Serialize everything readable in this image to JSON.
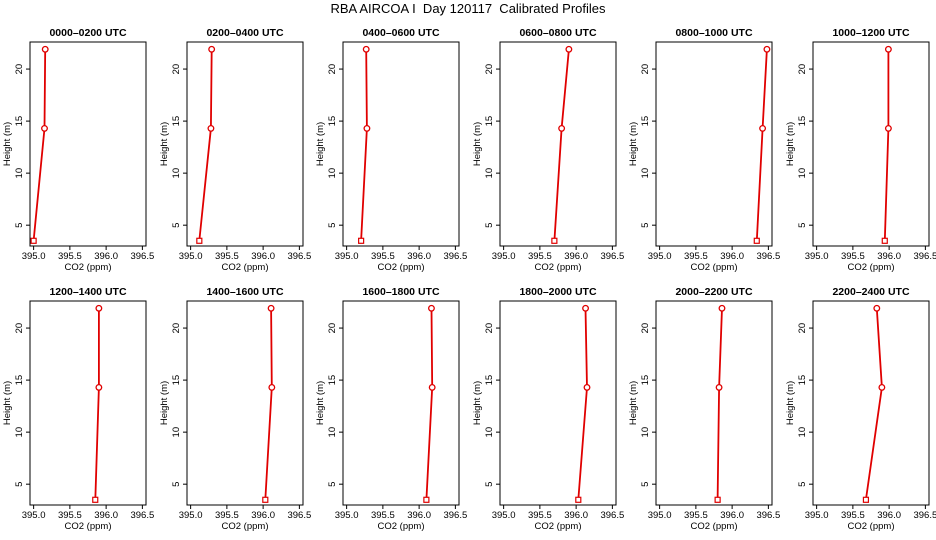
{
  "title": "RBA AIRCOA I  Day 120117  Calibrated Profiles",
  "colors": {
    "series": "#e00000",
    "axis": "#000000",
    "background": "#ffffff"
  },
  "chart_data": [
    {
      "type": "line",
      "title": "0000–0200 UTC",
      "xlabel": "CO2 (ppm)",
      "ylabel": "Height (m)",
      "xlim": [
        394.95,
        396.55
      ],
      "ylim": [
        3.0,
        22.6
      ],
      "xticks": [
        "395.0",
        "395.5",
        "396.0",
        "396.5"
      ],
      "yticks": [
        "5",
        "10",
        "15",
        "20"
      ],
      "grid": false,
      "series": [
        {
          "x": [
            395.0,
            395.15,
            395.16
          ],
          "y": [
            3.5,
            14.3,
            21.9
          ]
        }
      ]
    },
    {
      "type": "line",
      "title": "0200–0400 UTC",
      "xlabel": "CO2 (ppm)",
      "ylabel": "Height (m)",
      "xlim": [
        394.95,
        396.55
      ],
      "ylim": [
        3.0,
        22.6
      ],
      "xticks": [
        "395.0",
        "395.5",
        "396.0",
        "396.5"
      ],
      "yticks": [
        "5",
        "10",
        "15",
        "20"
      ],
      "grid": false,
      "series": [
        {
          "x": [
            395.12,
            395.28,
            395.29
          ],
          "y": [
            3.5,
            14.3,
            21.9
          ]
        }
      ]
    },
    {
      "type": "line",
      "title": "0400–0600 UTC",
      "xlabel": "CO2 (ppm)",
      "ylabel": "Height (m)",
      "xlim": [
        394.95,
        396.55
      ],
      "ylim": [
        3.0,
        22.6
      ],
      "xticks": [
        "395.0",
        "395.5",
        "396.0",
        "396.5"
      ],
      "yticks": [
        "5",
        "10",
        "15",
        "20"
      ],
      "grid": false,
      "series": [
        {
          "x": [
            395.2,
            395.28,
            395.27
          ],
          "y": [
            3.5,
            14.3,
            21.9
          ]
        }
      ]
    },
    {
      "type": "line",
      "title": "0600–0800 UTC",
      "xlabel": "CO2 (ppm)",
      "ylabel": "Height (m)",
      "xlim": [
        394.95,
        396.55
      ],
      "ylim": [
        3.0,
        22.6
      ],
      "xticks": [
        "395.0",
        "395.5",
        "396.0",
        "396.5"
      ],
      "yticks": [
        "5",
        "10",
        "15",
        "20"
      ],
      "grid": false,
      "series": [
        {
          "x": [
            395.7,
            395.8,
            395.9
          ],
          "y": [
            3.5,
            14.3,
            21.9
          ]
        }
      ]
    },
    {
      "type": "line",
      "title": "0800–1000 UTC",
      "xlabel": "CO2 (ppm)",
      "ylabel": "Height (m)",
      "xlim": [
        394.95,
        396.55
      ],
      "ylim": [
        3.0,
        22.6
      ],
      "xticks": [
        "395.0",
        "395.5",
        "396.0",
        "396.5"
      ],
      "yticks": [
        "5",
        "10",
        "15",
        "20"
      ],
      "grid": false,
      "series": [
        {
          "x": [
            396.34,
            396.42,
            396.48
          ],
          "y": [
            3.5,
            14.3,
            21.9
          ]
        }
      ]
    },
    {
      "type": "line",
      "title": "1000–1200 UTC",
      "xlabel": "CO2 (ppm)",
      "ylabel": "Height (m)",
      "xlim": [
        394.95,
        396.55
      ],
      "ylim": [
        3.0,
        22.6
      ],
      "xticks": [
        "395.0",
        "395.5",
        "396.0",
        "396.5"
      ],
      "yticks": [
        "5",
        "10",
        "15",
        "20"
      ],
      "grid": false,
      "series": [
        {
          "x": [
            395.94,
            395.99,
            395.99
          ],
          "y": [
            3.5,
            14.3,
            21.9
          ]
        }
      ]
    },
    {
      "type": "line",
      "title": "1200–1400 UTC",
      "xlabel": "CO2 (ppm)",
      "ylabel": "Height (m)",
      "xlim": [
        394.95,
        396.55
      ],
      "ylim": [
        3.0,
        22.6
      ],
      "xticks": [
        "395.0",
        "395.5",
        "396.0",
        "396.5"
      ],
      "yticks": [
        "5",
        "10",
        "15",
        "20"
      ],
      "grid": false,
      "series": [
        {
          "x": [
            395.85,
            395.9,
            395.9
          ],
          "y": [
            3.5,
            14.3,
            21.9
          ]
        }
      ]
    },
    {
      "type": "line",
      "title": "1400–1600 UTC",
      "xlabel": "CO2 (ppm)",
      "ylabel": "Height (m)",
      "xlim": [
        394.95,
        396.55
      ],
      "ylim": [
        3.0,
        22.6
      ],
      "xticks": [
        "395.0",
        "395.5",
        "396.0",
        "396.5"
      ],
      "yticks": [
        "5",
        "10",
        "15",
        "20"
      ],
      "grid": false,
      "series": [
        {
          "x": [
            396.03,
            396.12,
            396.11
          ],
          "y": [
            3.5,
            14.3,
            21.9
          ]
        }
      ]
    },
    {
      "type": "line",
      "title": "1600–1800 UTC",
      "xlabel": "CO2 (ppm)",
      "ylabel": "Height (m)",
      "xlim": [
        394.95,
        396.55
      ],
      "ylim": [
        3.0,
        22.6
      ],
      "xticks": [
        "395.0",
        "395.5",
        "396.0",
        "396.5"
      ],
      "yticks": [
        "5",
        "10",
        "15",
        "20"
      ],
      "grid": false,
      "series": [
        {
          "x": [
            396.1,
            396.18,
            396.17
          ],
          "y": [
            3.5,
            14.3,
            21.9
          ]
        }
      ]
    },
    {
      "type": "line",
      "title": "1800–2000 UTC",
      "xlabel": "CO2 (ppm)",
      "ylabel": "Height (m)",
      "xlim": [
        394.95,
        396.55
      ],
      "ylim": [
        3.0,
        22.6
      ],
      "xticks": [
        "395.0",
        "395.5",
        "396.0",
        "396.5"
      ],
      "yticks": [
        "5",
        "10",
        "15",
        "20"
      ],
      "grid": false,
      "series": [
        {
          "x": [
            396.03,
            396.15,
            396.13
          ],
          "y": [
            3.5,
            14.3,
            21.9
          ]
        }
      ]
    },
    {
      "type": "line",
      "title": "2000–2200 UTC",
      "xlabel": "CO2 (ppm)",
      "ylabel": "Height (m)",
      "xlim": [
        394.95,
        396.55
      ],
      "ylim": [
        3.0,
        22.6
      ],
      "xticks": [
        "395.0",
        "395.5",
        "396.0",
        "396.5"
      ],
      "yticks": [
        "5",
        "10",
        "15",
        "20"
      ],
      "grid": false,
      "series": [
        {
          "x": [
            395.8,
            395.82,
            395.86
          ],
          "y": [
            3.5,
            14.3,
            21.9
          ]
        }
      ]
    },
    {
      "type": "line",
      "title": "2200–2400 UTC",
      "xlabel": "CO2 (ppm)",
      "ylabel": "Height (m)",
      "xlim": [
        394.95,
        396.55
      ],
      "ylim": [
        3.0,
        22.6
      ],
      "xticks": [
        "395.0",
        "395.5",
        "396.0",
        "396.5"
      ],
      "yticks": [
        "5",
        "10",
        "15",
        "20"
      ],
      "grid": false,
      "series": [
        {
          "x": [
            395.68,
            395.9,
            395.83
          ],
          "y": [
            3.5,
            14.3,
            21.9
          ]
        }
      ]
    }
  ]
}
